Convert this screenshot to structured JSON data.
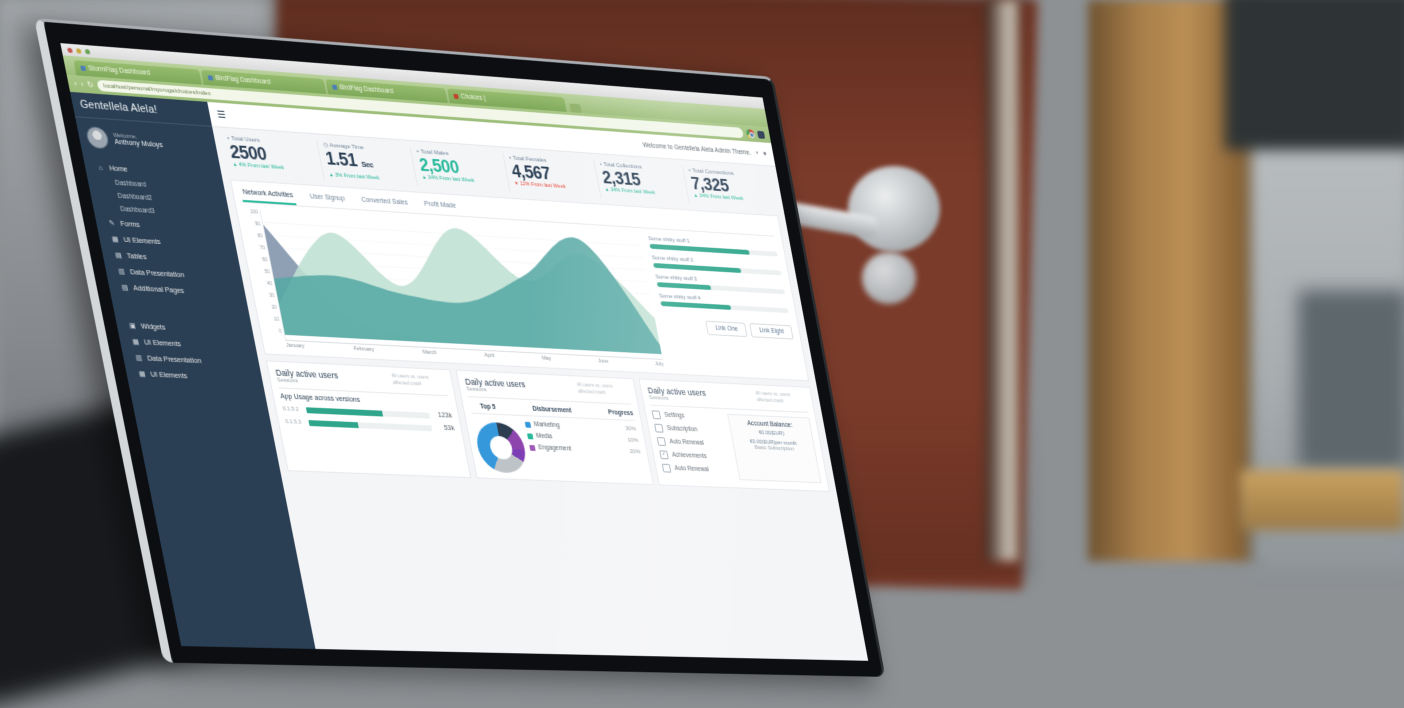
{
  "scene": {
    "description": "Laptop in front of red wooden door showing analytics dashboard",
    "accent_green": "#26B99A",
    "sidebar_navy": "#2A3F54",
    "negative_red": "#E74C3C"
  },
  "browser": {
    "tabs": [
      {
        "title": "StormFlag Dashboard"
      },
      {
        "title": "BirdFlag Dashboard"
      },
      {
        "title": "BirdFlag Dashboard"
      },
      {
        "title": "Choices |"
      }
    ],
    "url": "localhost/personal/myoruga/choices/index",
    "back_icon": "‹",
    "forward_icon": "›",
    "reload_icon": "↻"
  },
  "sidebar": {
    "brand": "Gentellela Alela!",
    "welcome": "Welcome,",
    "username": "Anthony Muloys",
    "menu": [
      {
        "label": "Home",
        "icon": "⌂"
      },
      {
        "label": "Dashboard"
      },
      {
        "label": "Dashboard2"
      },
      {
        "label": "Dashboard3"
      },
      {
        "label": "Forms",
        "icon": "✎"
      },
      {
        "label": "UI Elements",
        "icon": "▦"
      },
      {
        "label": "Tables",
        "icon": "▤"
      },
      {
        "label": "Data Presentation",
        "icon": "▥"
      },
      {
        "label": "Additional Pages",
        "icon": "▧"
      }
    ],
    "menu2": [
      {
        "label": "Widgets",
        "icon": "▣"
      },
      {
        "label": "UI Elements",
        "icon": "▦"
      },
      {
        "label": "Data Presentation",
        "icon": "▥"
      },
      {
        "label": "UI Elements",
        "icon": "▦"
      }
    ]
  },
  "topnav": {
    "welcome": "Welcome to Gentellela Alela Admin Theme.",
    "caret": "▾",
    "bell": "🔔"
  },
  "tiles": [
    {
      "label": "Total Users",
      "value": "2500",
      "delta": "4% From last Week",
      "arrow": "▲"
    },
    {
      "label": "Average Time",
      "value": "1.51",
      "unit": "Sec",
      "delta": "3% From last Week",
      "arrow": "▲"
    },
    {
      "label": "Total Males",
      "value": "2,500",
      "delta": "34% From last Week",
      "arrow": "▲"
    },
    {
      "label": "Total Females",
      "value": "4,567",
      "delta": "12% From last Week",
      "arrow": "▼"
    },
    {
      "label": "Total Collections",
      "value": "2,315",
      "delta": "34% From last Week",
      "arrow": "▲"
    },
    {
      "label": "Total Connections",
      "value": "7,325",
      "delta": "34% From last Week",
      "arrow": "▲"
    }
  ],
  "chart_panel": {
    "tabs": [
      {
        "label": "Network Activities"
      },
      {
        "label": "User Signup"
      },
      {
        "label": "Converted Sales"
      },
      {
        "label": "Profit Made"
      }
    ],
    "active_tab": "Network Activities",
    "legend": [
      {
        "label": "Some shitty stuff 1",
        "pct": 78
      },
      {
        "label": "Some shitty stuff 2",
        "pct": 68
      },
      {
        "label": "Some shitty stuff 3",
        "pct": 42
      },
      {
        "label": "Some shitty stuff 4",
        "pct": 55
      }
    ],
    "buttons": [
      {
        "label": "Link One"
      },
      {
        "label": "Link Eight"
      }
    ]
  },
  "panels": {
    "common": {
      "title": "Daily active users",
      "subtitle": "Sessions",
      "note": "All users vs. users affected crash"
    },
    "app_usage": {
      "heading": "App Usage across versions",
      "rows": [
        {
          "version": "0.1.5.2",
          "value": "123k",
          "pct": 62
        },
        {
          "version": "0.1.5.3",
          "value": "53k",
          "pct": 40
        }
      ]
    },
    "top5": {
      "headers": [
        "Top 5",
        "Disbursement",
        "Progress"
      ],
      "legend": [
        {
          "label": "Marketing",
          "pct": "30%",
          "color": "#3498DB"
        },
        {
          "label": "Media",
          "pct": "10%",
          "color": "#26B99A"
        },
        {
          "label": "Engagement",
          "pct": "20%",
          "color": "#9B59B6"
        }
      ]
    },
    "settings": {
      "heading": "Settings",
      "items": [
        {
          "label": "Subscription"
        },
        {
          "label": "Auto Renewal"
        },
        {
          "label": "Achievements",
          "check": "✓"
        },
        {
          "label": "Auto Renewal"
        }
      ],
      "account": {
        "title": "Account Balance:",
        "line1": "€0.00(EUR)",
        "line2": "€0.00(EUR)per month",
        "line3": "Basic Subscription"
      }
    }
  },
  "chart_data": [
    {
      "type": "area",
      "title": "Network Activities",
      "x": [
        "January",
        "February",
        "March",
        "April",
        "May",
        "June",
        "July"
      ],
      "ylim": [
        0,
        100
      ],
      "yticks": [
        "100",
        "90",
        "80",
        "70",
        "60",
        "50",
        "40",
        "30",
        "20",
        "10",
        "0"
      ],
      "grid": true,
      "legend_position": "right",
      "series": [
        {
          "name": "slate wedge",
          "color": "#7F93AB",
          "values": [
            88,
            20,
            4,
            1,
            0,
            0,
            0
          ]
        },
        {
          "name": "light teal",
          "color": "#BFE0D3",
          "values": [
            25,
            85,
            45,
            95,
            55,
            80,
            30
          ]
        },
        {
          "name": "dark teal",
          "color": "#57A8A4",
          "values": [
            45,
            50,
            38,
            35,
            60,
            92,
            8
          ]
        }
      ]
    },
    {
      "type": "pie",
      "style": "donut",
      "title": "Disbursement",
      "labels": [
        "Marketing",
        "Media",
        "Engagement"
      ],
      "values": [
        30,
        10,
        20
      ],
      "colors": [
        "#3498DB",
        "#26B99A",
        "#9B59B6"
      ],
      "segments": [
        {
          "color": "#2C3E50",
          "pct": 12
        },
        {
          "color": "#8E44AD",
          "pct": 14
        },
        {
          "color": "#7D3DB5",
          "pct": 8
        },
        {
          "color": "#BDC3C7",
          "pct": 24
        },
        {
          "color": "#3498DB",
          "pct": 42
        }
      ]
    }
  ]
}
